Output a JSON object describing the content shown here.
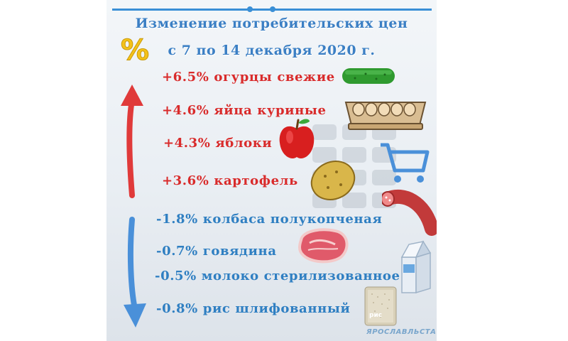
{
  "title": {
    "line1": "Изменение потребительских цен",
    "line2": "с  7 по 14 декабря 2020 г."
  },
  "increases": [
    {
      "text": "+6.5% огурцы свежие",
      "icon": "cucumber-icon"
    },
    {
      "text": "+4.6% яйца куриные",
      "icon": "eggs-carton-icon"
    },
    {
      "text": "+4.3% яблоки",
      "icon": "apple-icon"
    },
    {
      "text": "+3.6% картофель",
      "icon": "potato-icon"
    }
  ],
  "decreases": [
    {
      "text": "-1.8% колбаса полукопченая",
      "icon": "sausage-icon"
    },
    {
      "text": "-0.7% говядина",
      "icon": "beef-steak-icon"
    },
    {
      "text": "-0.5% молоко стерилизованное",
      "icon": "milk-carton-icon"
    },
    {
      "text": "-0.8% рис шлифованный",
      "icon": "rice-bag-icon"
    }
  ],
  "decor": {
    "percent_badge": "%",
    "rice_bag_label": "рис",
    "watermark": "ЯРОСЛАВЛЬСТА"
  },
  "colors": {
    "increase": "#d92b2b",
    "decrease": "#2f7fc2",
    "title": "#3b7fc4"
  }
}
